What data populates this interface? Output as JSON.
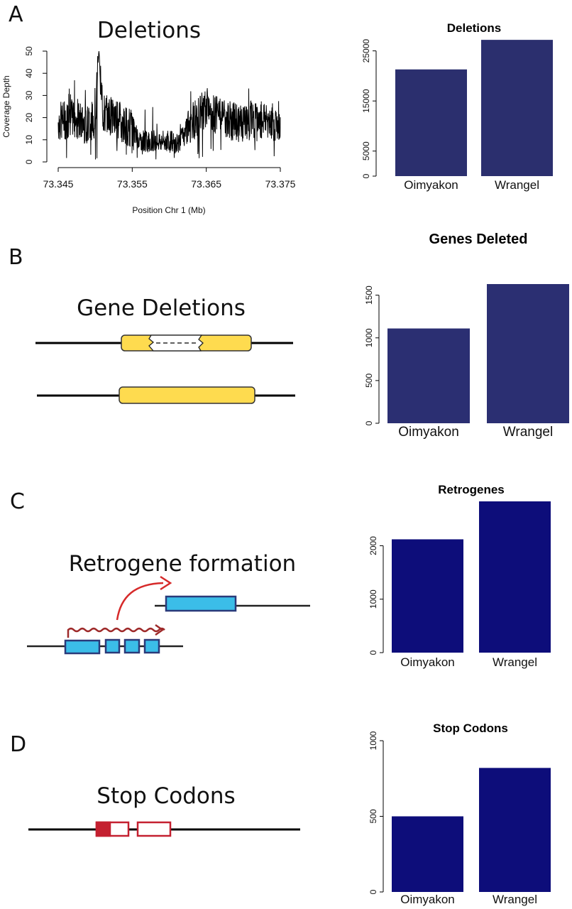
{
  "panels": {
    "A": {
      "letter": "A",
      "diagram_title": "Deletions"
    },
    "B": {
      "letter": "B",
      "diagram_title": "Gene Deletions"
    },
    "C": {
      "letter": "C",
      "diagram_title": "Retrogene formation"
    },
    "D": {
      "letter": "D",
      "diagram_title": "Stop Codons"
    }
  },
  "colors": {
    "bar_A": "#2b2f6e",
    "bar_B": "#2b2f72",
    "bar_C": "#0d0d7a",
    "bar_D": "#0d0d7a",
    "gene_yellow": "#fedb4f",
    "exon_blue": "#3bbde8",
    "exon_outline": "#2a3a7a",
    "arrow_red": "#d62a2a",
    "wave_red": "#9e2a2a",
    "stop_red": "#c42030"
  },
  "chart_data": [
    {
      "type": "line",
      "title": "",
      "xlabel": "Position Chr 1 (Mb)",
      "ylabel": "Coverage Depth",
      "xlim": [
        73.345,
        73.375
      ],
      "ylim": [
        0,
        50
      ],
      "xticks": [
        "73.345",
        "73.355",
        "73.365",
        "73.375"
      ],
      "yticks": [
        "0",
        "10",
        "20",
        "30",
        "40",
        "50"
      ],
      "series": [
        {
          "x": [
            73.345,
            73.346,
            73.347,
            73.348,
            73.349,
            73.35,
            73.3505,
            73.351,
            73.352,
            73.353,
            73.354,
            73.355,
            73.356,
            73.357,
            73.358,
            73.359,
            73.36,
            73.361,
            73.362,
            73.363,
            73.364,
            73.365,
            73.366,
            73.367,
            73.368,
            73.369,
            73.37,
            73.371,
            73.372,
            73.373,
            73.374,
            73.375
          ],
          "values": [
            18,
            19,
            20,
            18,
            17,
            20,
            51,
            22,
            21,
            19,
            17,
            15,
            10,
            9,
            10,
            9,
            10,
            8,
            12,
            18,
            21,
            25,
            22,
            20,
            19,
            18,
            17,
            19,
            18,
            20,
            18,
            17
          ]
        }
      ]
    },
    {
      "type": "bar",
      "title": "Deletions",
      "categories": [
        "Oimyakon",
        "Wrangel"
      ],
      "values": [
        21300,
        27200
      ],
      "ylim": [
        0,
        27500
      ],
      "yticks": [
        "0",
        "5000",
        "15000",
        "25000"
      ]
    },
    {
      "type": "bar",
      "title": "Genes Deleted",
      "categories": [
        "Oimyakon",
        "Wrangel"
      ],
      "values": [
        1110,
        1630
      ],
      "ylim": [
        0,
        1630
      ],
      "yticks": [
        "0",
        "500",
        "1000",
        "1500"
      ]
    },
    {
      "type": "bar",
      "title": "Retrogenes",
      "categories": [
        "Oimyakon",
        "Wrangel"
      ],
      "values": [
        2120,
        2830
      ],
      "ylim": [
        0,
        2830
      ],
      "yticks": [
        "0",
        "1000",
        "2000"
      ]
    },
    {
      "type": "bar",
      "title": "Stop Codons",
      "categories": [
        "Oimyakon",
        "Wrangel"
      ],
      "values": [
        500,
        820
      ],
      "ylim": [
        0,
        1000
      ],
      "yticks": [
        "0",
        "500",
        "1000"
      ]
    }
  ]
}
